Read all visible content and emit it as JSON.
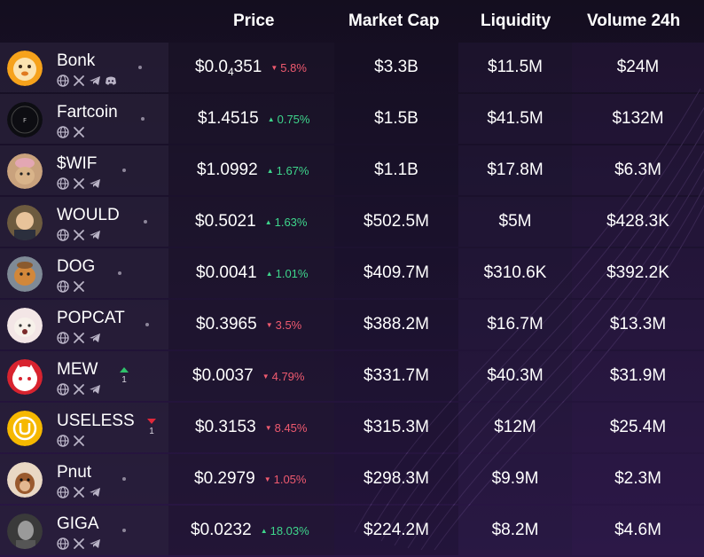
{
  "header": {
    "price": "Price",
    "market_cap": "Market Cap",
    "liquidity": "Liquidity",
    "volume": "Volume 24h"
  },
  "colors": {
    "up": "#3ed68c",
    "down": "#ef5a6f",
    "rank_up": "#2fc26b",
    "rank_down": "#e0283a"
  },
  "rows": [
    {
      "name": "Bonk",
      "price_main": "$0.0",
      "price_sub": "4",
      "price_rest": "351",
      "change": "5.8%",
      "direction": "down",
      "market_cap": "$3.3B",
      "liquidity": "$11.5M",
      "volume": "$24M",
      "socials": [
        "globe-icon",
        "x-icon",
        "telegram-icon",
        "discord-icon"
      ],
      "avatar": "bonk-dog-avatar-icon"
    },
    {
      "name": "Fartcoin",
      "price_main": "$1.4515",
      "price_sub": "",
      "price_rest": "",
      "change": "0.75%",
      "direction": "up",
      "market_cap": "$1.5B",
      "liquidity": "$41.5M",
      "volume": "$132M",
      "socials": [
        "globe-icon",
        "x-icon"
      ],
      "avatar": "fartcoin-avatar-icon"
    },
    {
      "name": "$WIF",
      "price_main": "$1.0992",
      "price_sub": "",
      "price_rest": "",
      "change": "1.67%",
      "direction": "up",
      "market_cap": "$1.1B",
      "liquidity": "$17.8M",
      "volume": "$6.3M",
      "socials": [
        "globe-icon",
        "x-icon",
        "telegram-icon"
      ],
      "avatar": "wif-dog-hat-avatar-icon"
    },
    {
      "name": "WOULD",
      "price_main": "$0.5021",
      "price_sub": "",
      "price_rest": "",
      "change": "1.63%",
      "direction": "up",
      "market_cap": "$502.5M",
      "liquidity": "$5M",
      "volume": "$428.3K",
      "socials": [
        "globe-icon",
        "x-icon",
        "telegram-icon"
      ],
      "avatar": "would-avatar-icon"
    },
    {
      "name": "DOG",
      "price_main": "$0.0041",
      "price_sub": "",
      "price_rest": "",
      "change": "1.01%",
      "direction": "up",
      "market_cap": "$409.7M",
      "liquidity": "$310.6K",
      "volume": "$392.2K",
      "socials": [
        "globe-icon",
        "x-icon"
      ],
      "avatar": "dog-avatar-icon"
    },
    {
      "name": "POPCAT",
      "price_main": "$0.3965",
      "price_sub": "",
      "price_rest": "",
      "change": "3.5%",
      "direction": "down",
      "market_cap": "$388.2M",
      "liquidity": "$16.7M",
      "volume": "$13.3M",
      "socials": [
        "globe-icon",
        "x-icon",
        "telegram-icon"
      ],
      "avatar": "popcat-avatar-icon"
    },
    {
      "name": "MEW",
      "price_main": "$0.0037",
      "price_sub": "",
      "price_rest": "",
      "change": "4.79%",
      "direction": "down",
      "market_cap": "$331.7M",
      "liquidity": "$40.3M",
      "volume": "$31.9M",
      "socials": [
        "globe-icon",
        "x-icon",
        "telegram-icon"
      ],
      "avatar": "mew-cat-avatar-icon",
      "rank_change": "1",
      "rank_direction": "up"
    },
    {
      "name": "USELESS",
      "price_main": "$0.3153",
      "price_sub": "",
      "price_rest": "",
      "change": "8.45%",
      "direction": "down",
      "market_cap": "$315.3M",
      "liquidity": "$12M",
      "volume": "$25.4M",
      "socials": [
        "globe-icon",
        "x-icon"
      ],
      "avatar": "useless-avatar-icon",
      "rank_change": "1",
      "rank_direction": "down"
    },
    {
      "name": "Pnut",
      "price_main": "$0.2979",
      "price_sub": "",
      "price_rest": "",
      "change": "1.05%",
      "direction": "down",
      "market_cap": "$298.3M",
      "liquidity": "$9.9M",
      "volume": "$2.3M",
      "socials": [
        "globe-icon",
        "x-icon",
        "telegram-icon"
      ],
      "avatar": "pnut-squirrel-avatar-icon"
    },
    {
      "name": "GIGA",
      "price_main": "$0.0232",
      "price_sub": "",
      "price_rest": "",
      "change": "18.03%",
      "direction": "up",
      "market_cap": "$224.2M",
      "liquidity": "$8.2M",
      "volume": "$4.6M",
      "socials": [
        "globe-icon",
        "x-icon",
        "telegram-icon"
      ],
      "avatar": "giga-chad-avatar-icon"
    }
  ]
}
